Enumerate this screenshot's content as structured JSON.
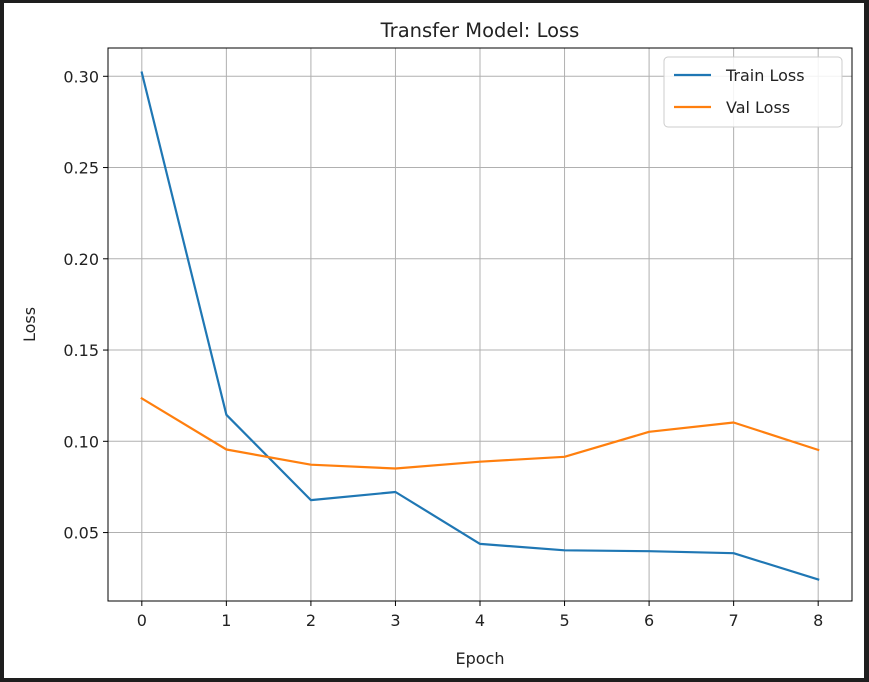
{
  "chart_data": {
    "type": "line",
    "title": "Transfer Model: Loss",
    "xlabel": "Epoch",
    "ylabel": "Loss",
    "x": [
      0,
      1,
      2,
      3,
      4,
      5,
      6,
      7,
      8
    ],
    "xlim": [
      -0.4,
      8.4
    ],
    "ylim": [
      0.0125,
      0.3155
    ],
    "xticks": [
      0,
      1,
      2,
      3,
      4,
      5,
      6,
      7,
      8
    ],
    "yticks": [
      0.05,
      0.1,
      0.15,
      0.2,
      0.25,
      0.3
    ],
    "ytick_labels": [
      "0.05",
      "0.10",
      "0.15",
      "0.20",
      "0.25",
      "0.30"
    ],
    "grid": true,
    "legend_position": "top-right",
    "series": [
      {
        "name": "Train Loss",
        "color": "#1f77b4",
        "values": [
          0.302,
          0.1145,
          0.0678,
          0.0722,
          0.0438,
          0.0403,
          0.0398,
          0.0387,
          0.0243
        ]
      },
      {
        "name": "Val Loss",
        "color": "#ff7f0e",
        "values": [
          0.1235,
          0.0955,
          0.0872,
          0.0851,
          0.0888,
          0.0915,
          0.1052,
          0.1103,
          0.0953
        ]
      }
    ]
  }
}
